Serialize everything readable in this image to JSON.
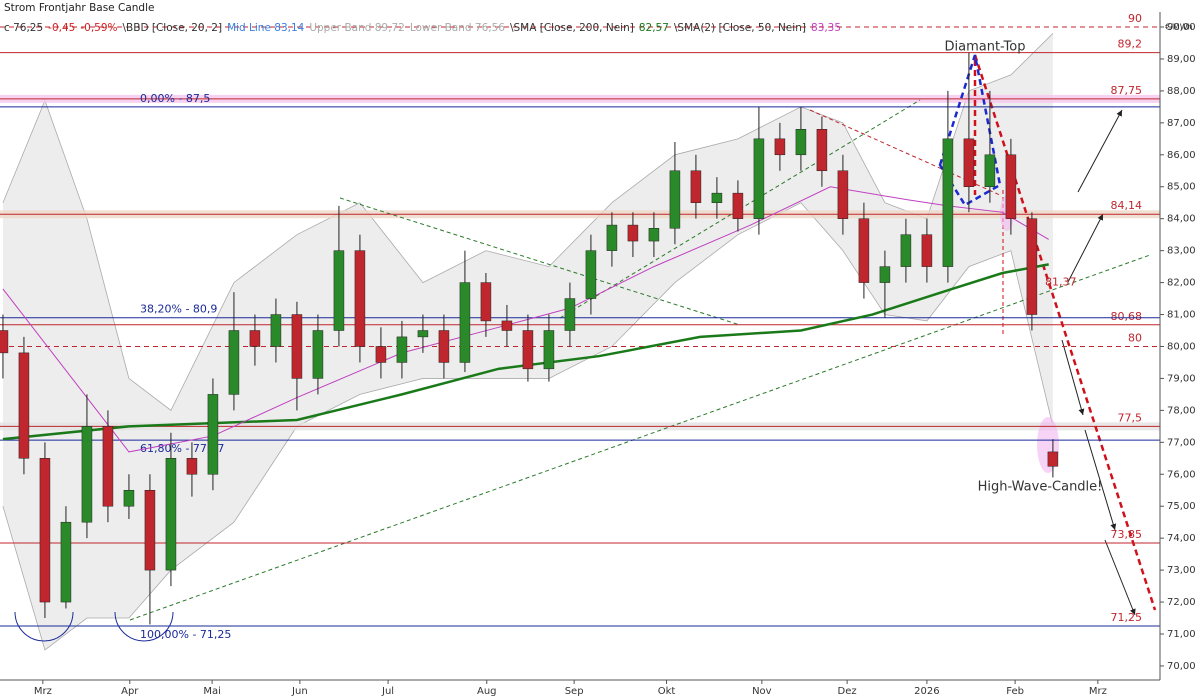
{
  "chart_data": {
    "type": "candlestick",
    "title": "Strom Frontjahr Base Candle",
    "header_items": [
      {
        "text": "c 76,25",
        "color": "#333"
      },
      {
        "text": "-0,45",
        "color": "#d02020"
      },
      {
        "text": "-0,59%",
        "color": "#d02020"
      },
      {
        "text": "\\BBD [Close, 20, 2]",
        "color": "#333"
      },
      {
        "text": "Mid Line 83,14",
        "color": "#3a7de0"
      },
      {
        "text": "Upper Band 89,72",
        "color": "#aaa"
      },
      {
        "text": "Lower Band 76,56",
        "color": "#aaa"
      },
      {
        "text": "\\SMA [Close, 200, Nein]",
        "color": "#333"
      },
      {
        "text": "82,57",
        "color": "#1a7a1a"
      },
      {
        "text": "\\SMA(2) [Close, 50, Nein]",
        "color": "#333"
      },
      {
        "text": "83,35",
        "color": "#c040c0"
      }
    ],
    "y_unit": "€/MWh",
    "x": [
      0,
      5,
      10,
      15,
      20,
      25,
      30,
      35,
      40,
      45,
      50,
      55,
      60,
      65,
      70,
      75,
      80,
      85,
      90,
      95,
      100,
      105,
      110,
      115,
      120,
      125,
      130,
      135,
      140,
      145,
      150,
      155,
      160,
      165,
      170,
      175,
      180,
      185,
      190,
      195,
      200,
      205,
      210,
      215,
      220,
      225,
      230,
      235,
      240,
      245,
      250
    ],
    "open": [
      80.5,
      79.8,
      76.5,
      72.0,
      74.5,
      77.5,
      75.0,
      75.5,
      73.0,
      76.5,
      76.0,
      78.5,
      80.5,
      80.0,
      81.0,
      79.0,
      80.5,
      83.0,
      80.0,
      79.5,
      80.3,
      80.5,
      79.5,
      82.0,
      80.8,
      80.5,
      79.3,
      80.5,
      81.5,
      83.0,
      83.8,
      83.3,
      83.7,
      85.5,
      84.5,
      84.8,
      84.0,
      86.5,
      86.0,
      86.8,
      85.5,
      84.0,
      82.0,
      82.5,
      83.5,
      82.5,
      86.5,
      85.0,
      86.0,
      84.0,
      76.7
    ],
    "high": [
      81.0,
      80.3,
      77.0,
      75.0,
      78.5,
      78.0,
      76.0,
      76.0,
      77.3,
      77.0,
      79.0,
      81.7,
      81.0,
      81.5,
      81.4,
      81.0,
      84.4,
      83.5,
      80.6,
      80.8,
      81.0,
      81.0,
      83.0,
      82.3,
      81.3,
      81.0,
      81.0,
      82.0,
      83.5,
      84.2,
      84.2,
      84.2,
      86.4,
      86.0,
      85.3,
      85.2,
      87.5,
      87.0,
      87.5,
      87.2,
      86.0,
      84.5,
      83.0,
      84.0,
      84.0,
      88.0,
      89.2,
      88.0,
      86.5,
      84.2,
      77.1
    ],
    "low": [
      79.0,
      76.0,
      71.5,
      71.8,
      74.0,
      74.5,
      74.6,
      71.3,
      72.5,
      75.3,
      75.5,
      78.0,
      79.4,
      79.5,
      78.0,
      78.5,
      80.0,
      79.5,
      79.0,
      79.0,
      79.8,
      79.0,
      79.2,
      80.3,
      80.0,
      78.9,
      78.9,
      80.0,
      81.0,
      82.5,
      82.8,
      82.8,
      83.2,
      84.0,
      84.0,
      83.6,
      83.5,
      85.5,
      85.5,
      85.0,
      83.5,
      81.5,
      80.9,
      82.0,
      82.0,
      82.0,
      84.2,
      84.5,
      83.5,
      80.5,
      75.9
    ],
    "close": [
      79.8,
      76.5,
      72.0,
      74.5,
      77.5,
      75.0,
      75.5,
      73.0,
      76.5,
      76.0,
      78.5,
      80.5,
      80.0,
      81.0,
      79.0,
      80.5,
      83.0,
      80.0,
      79.5,
      80.3,
      80.5,
      79.5,
      82.0,
      80.8,
      80.5,
      79.3,
      80.5,
      81.5,
      83.0,
      83.8,
      83.3,
      83.7,
      85.5,
      84.5,
      84.8,
      84.0,
      86.5,
      86.0,
      86.8,
      85.5,
      84.0,
      82.0,
      82.5,
      83.5,
      82.5,
      86.5,
      85.0,
      86.0,
      84.0,
      81.0,
      76.25
    ],
    "up_color": "#2a8a2a",
    "down_color": "#c0262d",
    "bands": {
      "color": "#e6e6e6",
      "x": [
        0,
        10,
        20,
        30,
        40,
        55,
        70,
        85,
        100,
        115,
        130,
        145,
        160,
        175,
        190,
        200,
        210,
        220,
        230,
        240,
        250
      ],
      "upper": [
        84.5,
        87.7,
        84.0,
        79.0,
        78.0,
        82.0,
        83.5,
        84.5,
        82.0,
        83.0,
        82.5,
        84.5,
        86.0,
        86.5,
        87.5,
        87.0,
        84.5,
        84.0,
        88.0,
        88.5,
        89.8
      ],
      "lower": [
        75.0,
        70.5,
        71.5,
        71.5,
        73.0,
        74.5,
        77.5,
        78.5,
        79.0,
        79.0,
        79.0,
        80.0,
        82.0,
        83.5,
        84.5,
        83.0,
        81.0,
        80.8,
        82.5,
        83.0,
        77.5
      ]
    },
    "lines": [
      {
        "color": "#1a7a1a",
        "width": 2.5,
        "x": [
          0,
          30,
          70,
          95,
          118,
          142,
          166,
          190,
          207,
          226,
          238,
          249
        ],
        "values": [
          77.1,
          77.5,
          77.7,
          78.5,
          79.3,
          79.7,
          80.3,
          80.5,
          81.0,
          81.8,
          82.3,
          82.57
        ]
      },
      {
        "color": "#c040c0",
        "width": 1,
        "x": [
          0,
          30,
          50,
          70,
          95,
          118,
          135,
          155,
          178,
          197,
          215,
          225,
          238,
          249
        ],
        "values": [
          81.8,
          76.7,
          77.2,
          78.4,
          79.8,
          80.6,
          81.2,
          82.5,
          83.8,
          85.0,
          84.6,
          84.4,
          84.2,
          83.35
        ]
      }
    ],
    "levels": [
      {
        "value": 90,
        "label": "90",
        "dashed": true
      },
      {
        "value": 89.2,
        "label": "89,2"
      },
      {
        "value": 87.75,
        "label": "87,75",
        "highlight": "#f6c8ee"
      },
      {
        "value": 84.14,
        "label": "84,14",
        "highlight": "#ecd8c8"
      },
      {
        "value": 80.68,
        "label": "80,68"
      },
      {
        "value": 80,
        "label": "80",
        "dashed": true
      },
      {
        "value": 77.5,
        "label": "77,5",
        "highlight": "#e2e2e2"
      },
      {
        "value": 73.85,
        "label": "73,85"
      },
      {
        "value": 71.25,
        "label": "71,25"
      }
    ],
    "level_color": "#c0262d",
    "fib_levels": [
      {
        "value": 87.5,
        "label": "0,00% - 87,5"
      },
      {
        "value": 80.9,
        "label": "38,20% - 80,9"
      },
      {
        "value": 77.07,
        "label": "61,80% - 77,07",
        "label_below": true
      },
      {
        "value": 71.25,
        "label": "100,00% - 71,25",
        "label_below": true
      }
    ],
    "fib_color": "#1a2a9a",
    "marker": {
      "value": 81.37,
      "label": "81,37"
    },
    "annotations": [
      "Diamant-Top",
      "High-Wave-Candle!"
    ],
    "xlim": [
      -0.7,
      275.5
    ],
    "ylim": [
      69.56,
      90.47
    ],
    "xticks": [
      {
        "value": 9.5,
        "label": "Mrz"
      },
      {
        "value": 30.2,
        "label": "Apr"
      },
      {
        "value": 49.8,
        "label": "Mai"
      },
      {
        "value": 70.7,
        "label": "Jun"
      },
      {
        "value": 91.7,
        "label": "Jul"
      },
      {
        "value": 115.2,
        "label": "Aug"
      },
      {
        "value": 136,
        "label": "Sep"
      },
      {
        "value": 158,
        "label": "Okt"
      },
      {
        "value": 180.7,
        "label": "Nov"
      },
      {
        "value": 201,
        "label": "Dez"
      },
      {
        "value": 220,
        "label": "2026"
      },
      {
        "value": 241,
        "label": "Feb"
      },
      {
        "value": 260.7,
        "label": "Mrz"
      }
    ],
    "yticks": [
      {
        "value": 70,
        "label": "70,00"
      },
      {
        "value": 71,
        "label": "71,00"
      },
      {
        "value": 72,
        "label": "72,00"
      },
      {
        "value": 73,
        "label": "73,00"
      },
      {
        "value": 74,
        "label": "74,00"
      },
      {
        "value": 75,
        "label": "75,00"
      },
      {
        "value": 76,
        "label": "76,00"
      },
      {
        "value": 77,
        "label": "77,00"
      },
      {
        "value": 78,
        "label": "78,00"
      },
      {
        "value": 79,
        "label": "79,00"
      },
      {
        "value": 80,
        "label": "80,00"
      },
      {
        "value": 81,
        "label": "81,00"
      },
      {
        "value": 82,
        "label": "82,00"
      },
      {
        "value": 83,
        "label": "83,00"
      },
      {
        "value": 84,
        "label": "84,00"
      },
      {
        "value": 85,
        "label": "85,00"
      },
      {
        "value": 86,
        "label": "86,00"
      },
      {
        "value": 87,
        "label": "87,00"
      },
      {
        "value": 88,
        "label": "88,00"
      },
      {
        "value": 89,
        "label": "89,00"
      },
      {
        "value": 90,
        "label": "90,00"
      }
    ]
  }
}
